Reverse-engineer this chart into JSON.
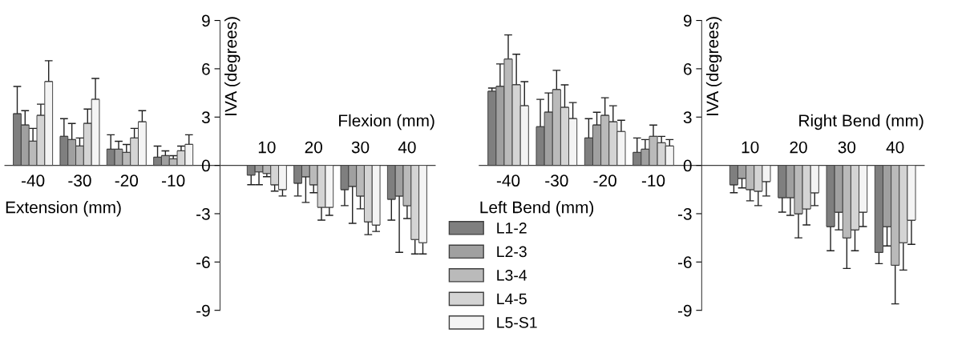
{
  "chart_data": [
    {
      "type": "bar",
      "categories": [
        "-40",
        "-30",
        "-20",
        "-10",
        null,
        "10",
        "20",
        "30",
        "40"
      ],
      "xlabel": "Extension (mm)",
      "ylabel": "IVA (degrees)",
      "annotations": [
        "Flexion (mm)"
      ],
      "ylim": [
        -9,
        9
      ],
      "yticks": [
        9,
        6,
        3,
        0,
        -3,
        -6,
        -9
      ],
      "grid": false,
      "legend": "bottom right",
      "series": [
        {
          "name": "L1-2",
          "color": "#7f7f7f",
          "values": [
            3.2,
            1.8,
            1.0,
            0.5,
            null,
            -0.6,
            -1.1,
            -1.5,
            -2.1
          ],
          "errors": [
            [
              3.2,
              4.9
            ],
            [
              1.8,
              2.9
            ],
            [
              1.0,
              1.9
            ],
            [
              0.5,
              1.2
            ],
            null,
            [
              -1.2,
              -0.6
            ],
            [
              -1.9,
              -1.1
            ],
            [
              -2.5,
              -1.5
            ],
            [
              -3.4,
              -2.1
            ]
          ]
        },
        {
          "name": "L2-3",
          "color": "#a0a0a0",
          "values": [
            2.5,
            1.6,
            1.0,
            0.6,
            null,
            -0.4,
            -0.7,
            -1.3,
            -1.9
          ],
          "errors": [
            [
              2.5,
              3.4
            ],
            [
              1.6,
              2.6
            ],
            [
              1.0,
              1.5
            ],
            [
              0.6,
              0.9
            ],
            null,
            [
              -1.2,
              -0.4
            ],
            [
              -2.3,
              -0.7
            ],
            [
              -3.6,
              -1.3
            ],
            [
              -5.4,
              -1.9
            ]
          ]
        },
        {
          "name": "L3-4",
          "color": "#bababa",
          "values": [
            1.5,
            1.2,
            0.8,
            0.4,
            null,
            -0.5,
            -1.2,
            -1.9,
            -2.5
          ],
          "errors": [
            [
              1.5,
              2.3
            ],
            [
              1.2,
              1.7
            ],
            [
              0.8,
              1.3
            ],
            [
              0.4,
              0.6
            ],
            null,
            [
              -0.7,
              -0.5
            ],
            [
              -1.7,
              -1.2
            ],
            [
              -2.7,
              -1.9
            ],
            [
              -3.3,
              -2.5
            ]
          ]
        },
        {
          "name": "L4-5",
          "color": "#d4d4d4",
          "values": [
            3.1,
            2.6,
            1.7,
            0.9,
            null,
            -1.2,
            -2.6,
            -3.5,
            -4.6
          ],
          "errors": [
            [
              3.1,
              3.8
            ],
            [
              2.6,
              3.5
            ],
            [
              1.7,
              2.3
            ],
            [
              0.9,
              1.2
            ],
            null,
            [
              -1.6,
              -1.2
            ],
            [
              -3.4,
              -2.6
            ],
            [
              -4.3,
              -3.5
            ],
            [
              -5.5,
              -4.6
            ]
          ]
        },
        {
          "name": "L5-S1",
          "color": "#f4f4f4",
          "values": [
            5.2,
            4.1,
            2.7,
            1.3,
            null,
            -1.5,
            -2.6,
            -3.7,
            -4.8
          ],
          "errors": [
            [
              5.2,
              6.5
            ],
            [
              4.1,
              5.4
            ],
            [
              2.7,
              3.4
            ],
            [
              1.3,
              1.9
            ],
            null,
            [
              -1.9,
              -1.5
            ],
            [
              -3.1,
              -2.6
            ],
            [
              -4.1,
              -3.7
            ],
            [
              -5.5,
              -4.8
            ]
          ]
        }
      ]
    },
    {
      "type": "bar",
      "categories": [
        "-40",
        "-30",
        "-20",
        "-10",
        null,
        "10",
        "20",
        "30",
        "40"
      ],
      "xlabel": "Left Bend (mm)",
      "ylabel": "IVA (degrees)",
      "annotations": [
        "Right Bend (mm)"
      ],
      "ylim": [
        -9,
        9
      ],
      "yticks": [
        9,
        6,
        3,
        0,
        -3,
        -6,
        -9
      ],
      "grid": false,
      "series": [
        {
          "color": "#7f7f7f",
          "values": [
            4.6,
            2.4,
            1.7,
            0.8,
            null,
            -1.2,
            -2.0,
            -3.8,
            -5.4
          ],
          "errors": [
            [
              4.6,
              4.8
            ],
            [
              2.4,
              4.1
            ],
            [
              1.7,
              2.9
            ],
            [
              0.8,
              1.7
            ],
            null,
            [
              -1.7,
              -1.2
            ],
            [
              -2.9,
              -2.0
            ],
            [
              -5.3,
              -3.8
            ],
            [
              -6.1,
              -5.4
            ]
          ]
        },
        {
          "color": "#a0a0a0",
          "values": [
            4.9,
            3.3,
            2.5,
            1.0,
            null,
            -0.8,
            -2.0,
            -2.9,
            -3.8
          ],
          "errors": [
            [
              4.9,
              6.3
            ],
            [
              3.3,
              4.5
            ],
            [
              2.5,
              3.3
            ],
            [
              1.0,
              1.6
            ],
            null,
            [
              -1.4,
              -0.8
            ],
            [
              -3.1,
              -2.0
            ],
            [
              -4.0,
              -2.9
            ],
            [
              -5.0,
              -3.8
            ]
          ]
        },
        {
          "color": "#bababa",
          "values": [
            6.6,
            4.7,
            3.1,
            1.8,
            null,
            -1.5,
            -3.0,
            -4.5,
            -6.2
          ],
          "errors": [
            [
              6.6,
              8.1
            ],
            [
              4.7,
              5.9
            ],
            [
              3.1,
              4.2
            ],
            [
              1.8,
              2.5
            ],
            null,
            [
              -2.2,
              -1.5
            ],
            [
              -4.5,
              -3.0
            ],
            [
              -6.4,
              -4.5
            ],
            [
              -8.6,
              -6.2
            ]
          ]
        },
        {
          "color": "#d4d4d4",
          "values": [
            5.0,
            3.6,
            2.7,
            1.4,
            null,
            -1.6,
            -2.7,
            -4.0,
            -4.8
          ],
          "errors": [
            [
              5.0,
              6.9
            ],
            [
              3.6,
              5.0
            ],
            [
              2.7,
              3.7
            ],
            [
              1.4,
              1.8
            ],
            null,
            [
              -2.5,
              -1.6
            ],
            [
              -3.7,
              -2.7
            ],
            [
              -5.3,
              -4.0
            ],
            [
              -6.5,
              -4.8
            ]
          ]
        },
        {
          "color": "#f4f4f4",
          "values": [
            3.7,
            2.9,
            2.1,
            1.2,
            null,
            -1.0,
            -1.7,
            -2.9,
            -3.4
          ],
          "errors": [
            [
              3.7,
              5.2
            ],
            [
              2.9,
              3.9
            ],
            [
              2.1,
              2.8
            ],
            [
              1.2,
              1.6
            ],
            null,
            [
              -1.9,
              -1.0
            ],
            [
              -2.5,
              -1.7
            ],
            [
              -3.8,
              -2.9
            ],
            [
              -4.9,
              -3.4
            ]
          ]
        }
      ]
    }
  ]
}
